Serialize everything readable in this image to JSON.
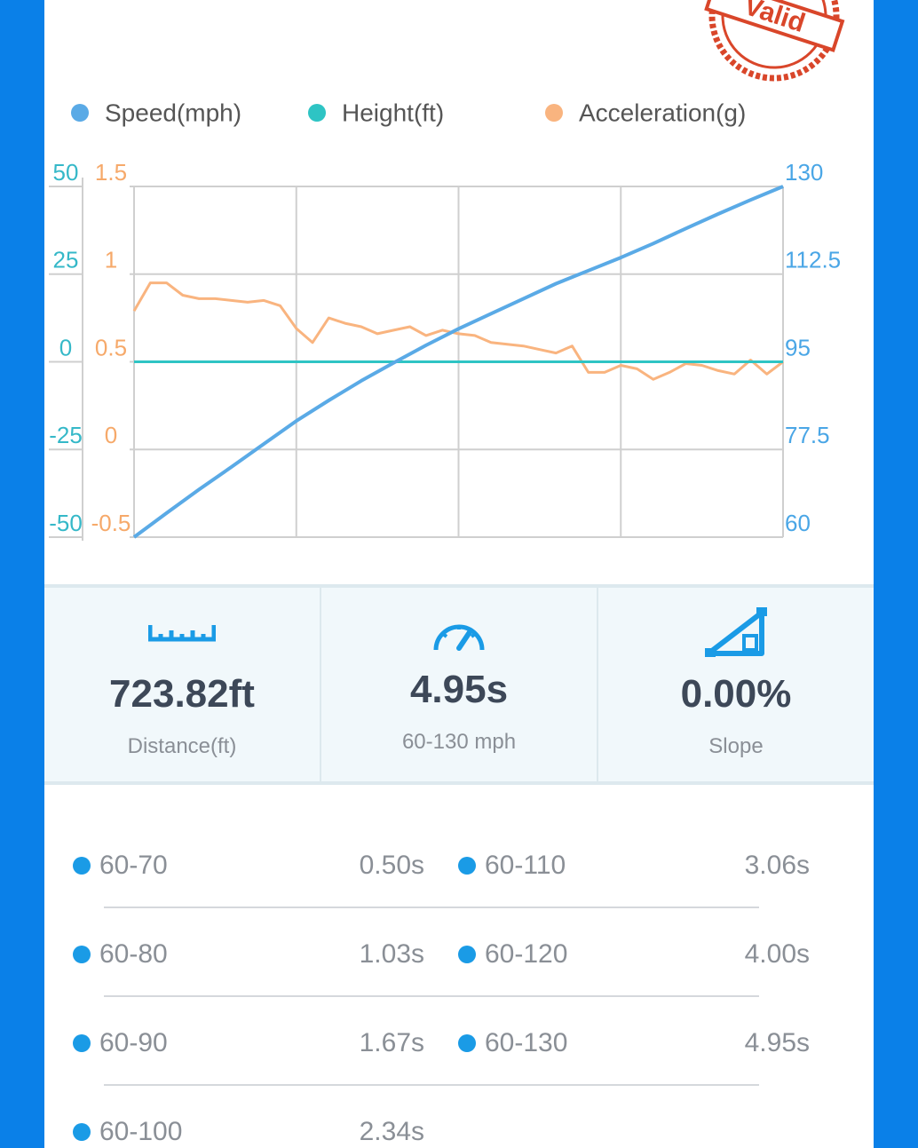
{
  "stamp": "Valid",
  "chart_data": {
    "type": "line",
    "series": [
      {
        "name": "Speed(mph)",
        "color": "#5aaae6",
        "axis": "y2",
        "values": [
          60,
          64.8,
          69.5,
          74.0,
          78.6,
          83.2,
          87.3,
          91.2,
          94.8,
          98.3,
          101.6,
          104.6,
          107.6,
          110.6,
          113.2,
          115.8,
          118.6,
          121.6,
          124.5,
          127.3,
          130
        ]
      },
      {
        "name": "Height(ft)",
        "color": "#2ec4c4",
        "axis": "y",
        "values": [
          0,
          0,
          0,
          0,
          0,
          0,
          0,
          0,
          0,
          0,
          0,
          0,
          0,
          0,
          0,
          0,
          0,
          0,
          0,
          0,
          0
        ]
      },
      {
        "name": "Acceleration(g)",
        "color": "#f9b47f",
        "axis": "y3",
        "values": [
          0.79,
          0.95,
          0.95,
          0.88,
          0.86,
          0.86,
          0.85,
          0.84,
          0.85,
          0.82,
          0.69,
          0.61,
          0.75,
          0.72,
          0.7,
          0.66,
          0.68,
          0.7,
          0.65,
          0.68,
          0.66,
          0.65,
          0.61,
          0.6,
          0.59,
          0.57,
          0.55,
          0.59,
          0.44,
          0.44,
          0.48,
          0.46,
          0.4,
          0.44,
          0.49,
          0.48,
          0.45,
          0.43,
          0.51,
          0.43,
          0.5
        ]
      }
    ],
    "ylim": [
      -50,
      50
    ],
    "yticks": [
      -50,
      -25,
      0,
      25,
      50
    ],
    "y3lim": [
      -0.5,
      1.5
    ],
    "y3ticks": [
      -0.5,
      0,
      0.5,
      1,
      1.5
    ],
    "y2lim": [
      60,
      130
    ],
    "y2ticks": [
      60,
      77.5,
      95,
      112.5,
      130
    ],
    "grid": true
  },
  "stats": [
    {
      "value": "723.82ft",
      "label": "Distance(ft)"
    },
    {
      "value": "4.95s",
      "label": "60-130 mph"
    },
    {
      "value": "0.00%",
      "label": "Slope"
    }
  ],
  "splits": [
    {
      "label": "60-70",
      "time": "0.50s"
    },
    {
      "label": "60-80",
      "time": "1.03s"
    },
    {
      "label": "60-90",
      "time": "1.67s"
    },
    {
      "label": "60-100",
      "time": "2.34s"
    },
    {
      "label": "60-110",
      "time": "3.06s"
    },
    {
      "label": "60-120",
      "time": "4.00s"
    },
    {
      "label": "60-130",
      "time": "4.95s"
    }
  ]
}
